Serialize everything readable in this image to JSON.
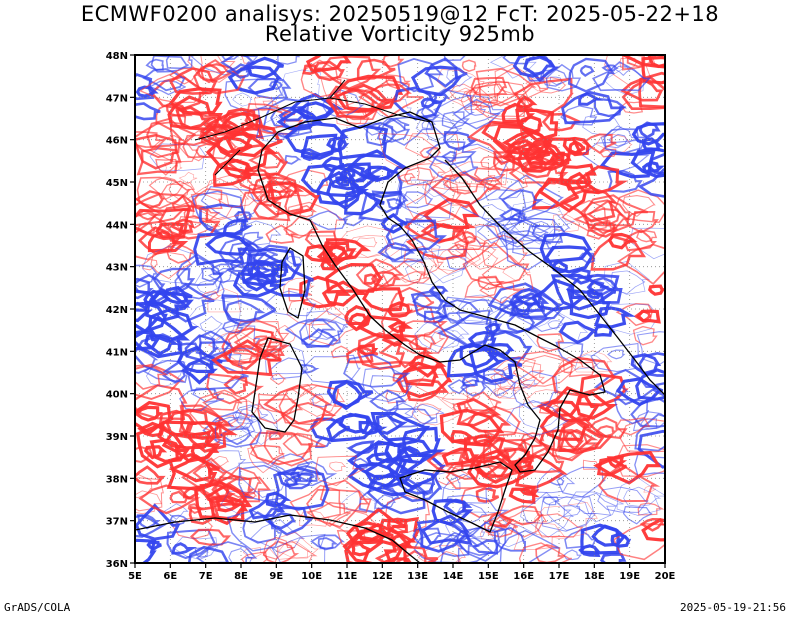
{
  "title_line1": "ECMWF0200 analisys: 20250519@12 FcT: 2025-05-22+18",
  "title_line2": "Relative Vorticity 925mb",
  "footer_left": "GrADS/COLA",
  "footer_right": "2025-05-19-21:56",
  "colors": {
    "positive": "#ff3333",
    "negative": "#3344ee",
    "coastline": "#000000",
    "grid": "#888888"
  },
  "map_data": {
    "lon_range": [
      5,
      20
    ],
    "lat_range": [
      36,
      48
    ],
    "lon_ticks": [
      "5E",
      "6E",
      "7E",
      "8E",
      "9E",
      "10E",
      "11E",
      "12E",
      "13E",
      "14E",
      "15E",
      "16E",
      "17E",
      "18E",
      "19E",
      "20E"
    ],
    "lat_ticks": [
      "36N",
      "37N",
      "38N",
      "39N",
      "40N",
      "41N",
      "42N",
      "43N",
      "44N",
      "45N",
      "46N",
      "47N",
      "48N"
    ],
    "contour_lines": "positive vorticity in red, negative vorticity in blue",
    "grid": "dotted"
  }
}
